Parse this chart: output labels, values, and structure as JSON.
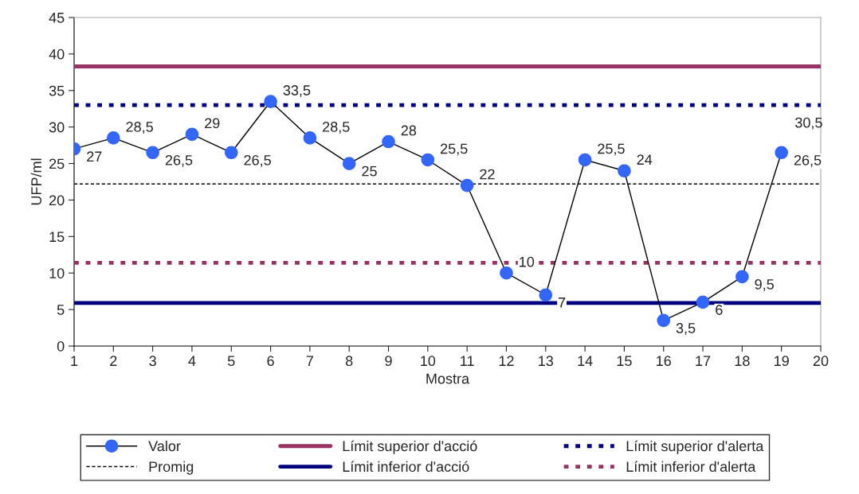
{
  "chart_data": {
    "type": "line",
    "xlabel": "Mostra",
    "ylabel": "UFP/ml",
    "xlim": [
      1,
      20
    ],
    "xticks": [
      1,
      2,
      3,
      4,
      5,
      6,
      7,
      8,
      9,
      10,
      11,
      12,
      13,
      14,
      15,
      16,
      17,
      18,
      19,
      20
    ],
    "ylim": [
      0,
      45
    ],
    "yticks": [
      0,
      5,
      10,
      15,
      20,
      25,
      30,
      35,
      40,
      45
    ],
    "grid": false,
    "legend": "bottom",
    "series": [
      {
        "name": "Valor",
        "color": "#3366ff",
        "marker": "circle",
        "line_style": "solid",
        "x": [
          1,
          2,
          3,
          4,
          5,
          6,
          7,
          8,
          9,
          10,
          11,
          12,
          13,
          14,
          15,
          16,
          17,
          18,
          19
        ],
        "values": [
          27,
          28.5,
          26.5,
          29,
          26.5,
          33.5,
          28.5,
          25,
          28,
          25.5,
          22,
          10,
          7,
          25.5,
          24,
          3.5,
          6,
          9.5,
          26.5
        ],
        "value_labels": [
          "27",
          "28,5",
          "26,5",
          "29",
          "26,5",
          "33,5",
          "28,5",
          "25",
          "28",
          "25,5",
          "22",
          "10",
          "7",
          "25,5",
          "24",
          "3,5",
          "6",
          "9,5",
          "26,5"
        ]
      },
      {
        "name": "Promig",
        "color": "#000000",
        "marker": "none",
        "line_style": "dashed",
        "x": [
          1,
          20
        ],
        "values": [
          22.2,
          22.2
        ]
      },
      {
        "name": "Límit superior d'acció",
        "color": "#993366",
        "marker": "none",
        "line_style": "solid",
        "x": [
          1,
          20
        ],
        "values": [
          38.3,
          38.3
        ]
      },
      {
        "name": "Límit inferior d'acció",
        "color": "#000080",
        "marker": "none",
        "line_style": "solid",
        "x": [
          1,
          20
        ],
        "values": [
          5.9,
          5.9
        ]
      },
      {
        "name": "Límit superior d'alerta",
        "color": "#000080",
        "marker": "none",
        "line_style": "dotted",
        "x": [
          1,
          20
        ],
        "values": [
          33,
          33
        ]
      },
      {
        "name": "Límit inferior d'alerta",
        "color": "#993366",
        "marker": "none",
        "line_style": "dotted",
        "x": [
          1,
          20
        ],
        "values": [
          11.4,
          11.4
        ]
      }
    ],
    "annotations": [
      {
        "text": "30,5",
        "x": 19,
        "y": 26.5
      }
    ]
  }
}
